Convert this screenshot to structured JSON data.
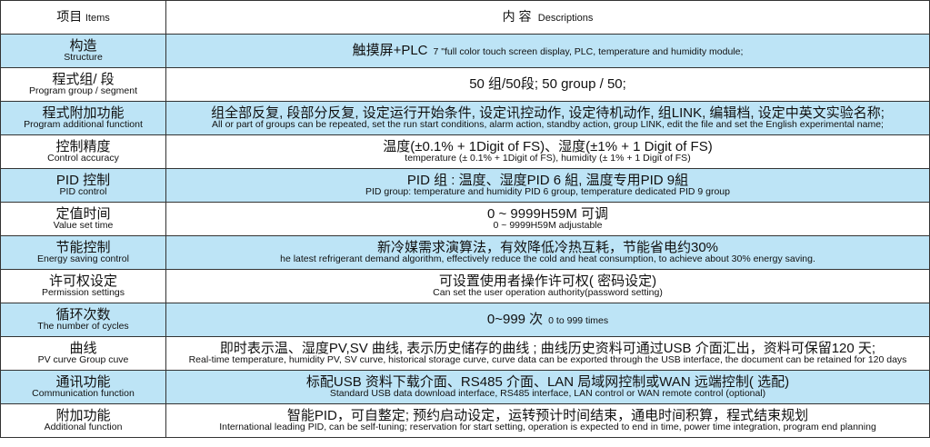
{
  "header": {
    "item_zh": "项目",
    "item_en": "Items",
    "desc_zh": "内 容",
    "desc_en": "Descriptions"
  },
  "rows": [
    {
      "label_zh": "构造",
      "label_en": "Structure",
      "desc_zh": "触摸屏+PLC",
      "desc_en": "7 \"full color touch screen display, PLC, temperature and humidity module;",
      "highlight": true
    },
    {
      "label_zh": "程式组/ 段",
      "label_en": "Program group / segment",
      "desc_zh": "50 组/50段;  50 group / 50;",
      "desc_en": "",
      "highlight": false
    },
    {
      "label_zh": "程式附加功能",
      "label_en": "Program additional functiont",
      "desc_zh": "组全部反复, 段部分反复, 设定运行开始条件, 设定讯控动作, 设定待机动作, 组LINK, 编辑档, 设定中英文实验名称;",
      "desc_en": "All or part of groups can be repeated, set the run start conditions, alarm action, standby action, group LINK, edit the file and set the English experimental name;",
      "highlight": true
    },
    {
      "label_zh": "控制精度",
      "label_en": "Control accuracy",
      "desc_zh": "温度(±0.1% + 1Digit of FS)、湿度(±1% + 1 Digit of FS)",
      "desc_en": "temperature (± 0.1% + 1Digit of FS), humidity (± 1% + 1 Digit of FS)",
      "highlight": false
    },
    {
      "label_zh": "PID 控制",
      "label_en": "PID control",
      "desc_zh": "PID 组 : 温度、湿度PID 6 組, 温度专用PID 9組",
      "desc_en": "PID group: temperature and humidity PID 6 group, temperature dedicated PID 9 group",
      "highlight": true
    },
    {
      "label_zh": "定值时间",
      "label_en": "Value set time",
      "desc_zh": "0 ~ 9999H59M 可调",
      "desc_en": "0 ~ 9999H59M adjustable",
      "highlight": false
    },
    {
      "label_zh": "节能控制",
      "label_en": "Energy saving control",
      "desc_zh": "新冷媒需求演算法，有效降低冷热互耗，节能省电约30%",
      "desc_en": "he latest refrigerant demand algorithm, effectively reduce the cold and heat consumption, to achieve about 30% energy saving.",
      "highlight": true
    },
    {
      "label_zh": "许可权设定",
      "label_en": "Permission settings",
      "desc_zh": "可设置使用者操作许可权( 密码设定)",
      "desc_en": "Can set the user operation authority(password setting)",
      "highlight": false
    },
    {
      "label_zh": "循环次数",
      "label_en": "The number of cycles",
      "desc_zh": "0~999 次",
      "desc_en": "0 to 999 times",
      "highlight": true
    },
    {
      "label_zh": "曲线",
      "label_en": "PV curve Group cuve",
      "desc_zh": "即时表示温、湿度PV,SV 曲线, 表示历史储存的曲线 ; 曲线历史资料可通过USB 介面汇出，资料可保留120 天;",
      "desc_en": "Real-time temperature, humidity PV, SV curve, historical storage curve, curve data can be exported through the USB interface, the document can be retained for 120 days",
      "highlight": false
    },
    {
      "label_zh": "通讯功能",
      "label_en": "Communication function",
      "desc_zh": "标配USB 资料下载介面、RS485 介面、LAN 局域网控制或WAN 远端控制( 选配)",
      "desc_en": "Standard USB data download interface, RS485 interface, LAN control or WAN remote control (optional)",
      "highlight": true
    },
    {
      "label_zh": "附加功能",
      "label_en": "Additional function",
      "desc_zh": "智能PID，可自整定; 预约启动设定，运转预计时间结束，通电时间积算，程式结束规划",
      "desc_en": "International leading PID, can be self-tuning; reservation for start setting, operation is expected to end in time, power time integration, program end planning",
      "highlight": false
    }
  ]
}
